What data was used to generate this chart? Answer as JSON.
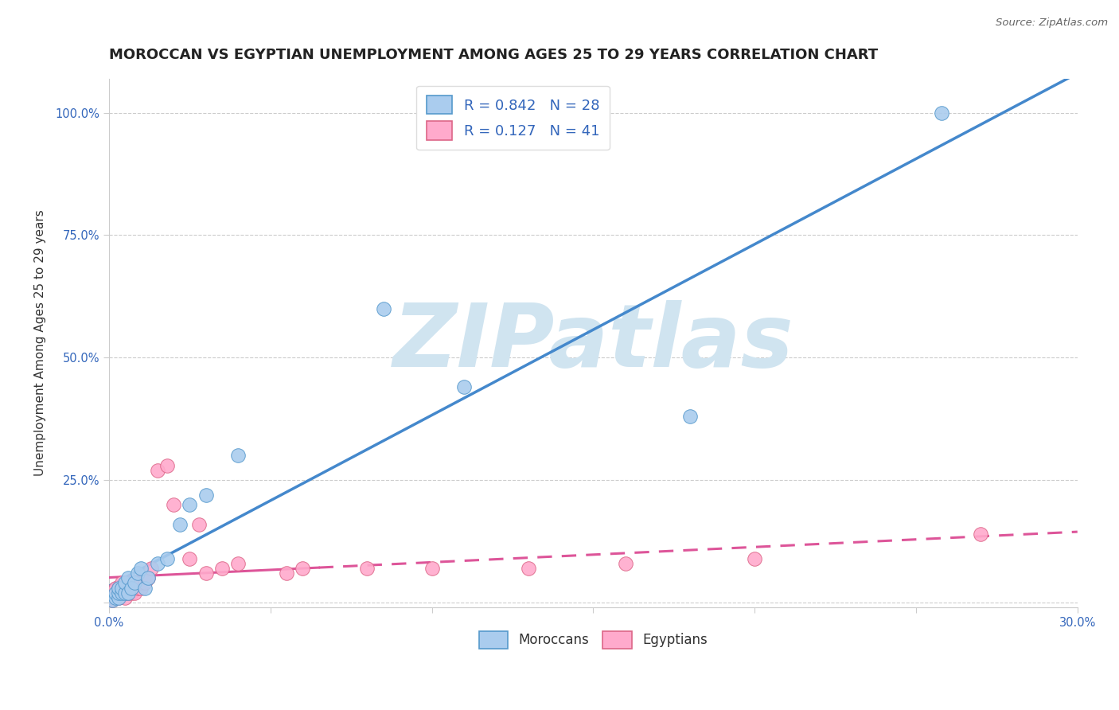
{
  "title": "MOROCCAN VS EGYPTIAN UNEMPLOYMENT AMONG AGES 25 TO 29 YEARS CORRELATION CHART",
  "source_text": "Source: ZipAtlas.com",
  "ylabel": "Unemployment Among Ages 25 to 29 years",
  "xlim": [
    0.0,
    0.3
  ],
  "ylim": [
    -0.01,
    1.07
  ],
  "moroccan_R": 0.842,
  "moroccan_N": 28,
  "egyptian_R": 0.127,
  "egyptian_N": 41,
  "moroccan_color": "#aaccee",
  "moroccan_edge": "#5599cc",
  "egyptian_color": "#ffaacc",
  "egyptian_edge": "#dd6688",
  "trend_blue": "#4488cc",
  "trend_pink": "#dd5599",
  "watermark": "ZIPatlas",
  "watermark_color": "#d0e4f0",
  "background_color": "#ffffff",
  "grid_color": "#cccccc",
  "moroccan_x": [
    0.001,
    0.002,
    0.002,
    0.003,
    0.003,
    0.003,
    0.004,
    0.004,
    0.005,
    0.005,
    0.006,
    0.006,
    0.007,
    0.008,
    0.009,
    0.01,
    0.011,
    0.012,
    0.015,
    0.018,
    0.022,
    0.025,
    0.03,
    0.04,
    0.085,
    0.11,
    0.18,
    0.258
  ],
  "moroccan_y": [
    0.005,
    0.01,
    0.02,
    0.01,
    0.02,
    0.03,
    0.02,
    0.03,
    0.02,
    0.04,
    0.02,
    0.05,
    0.03,
    0.04,
    0.06,
    0.07,
    0.03,
    0.05,
    0.08,
    0.09,
    0.16,
    0.2,
    0.22,
    0.3,
    0.6,
    0.44,
    0.38,
    1.0
  ],
  "egyptian_x": [
    0.001,
    0.001,
    0.002,
    0.002,
    0.002,
    0.003,
    0.003,
    0.003,
    0.004,
    0.004,
    0.005,
    0.005,
    0.005,
    0.006,
    0.006,
    0.007,
    0.007,
    0.008,
    0.008,
    0.009,
    0.01,
    0.01,
    0.011,
    0.012,
    0.013,
    0.015,
    0.018,
    0.02,
    0.025,
    0.028,
    0.03,
    0.035,
    0.04,
    0.055,
    0.06,
    0.08,
    0.1,
    0.13,
    0.16,
    0.2,
    0.27
  ],
  "egyptian_y": [
    0.005,
    0.01,
    0.01,
    0.02,
    0.03,
    0.01,
    0.02,
    0.03,
    0.02,
    0.04,
    0.01,
    0.02,
    0.03,
    0.02,
    0.03,
    0.02,
    0.03,
    0.02,
    0.04,
    0.03,
    0.03,
    0.04,
    0.04,
    0.05,
    0.07,
    0.27,
    0.28,
    0.2,
    0.09,
    0.16,
    0.06,
    0.07,
    0.08,
    0.06,
    0.07,
    0.07,
    0.07,
    0.07,
    0.08,
    0.09,
    0.14
  ],
  "ytick_vals": [
    0.0,
    0.25,
    0.5,
    0.75,
    1.0
  ],
  "ytick_labels": [
    "",
    "25.0%",
    "50.0%",
    "75.0%",
    "100.0%"
  ],
  "xtick_vals": [
    0.0,
    0.05,
    0.1,
    0.15,
    0.2,
    0.25,
    0.3
  ],
  "xtick_labels": [
    "0.0%",
    "",
    "",
    "",
    "",
    "",
    "30.0%"
  ]
}
